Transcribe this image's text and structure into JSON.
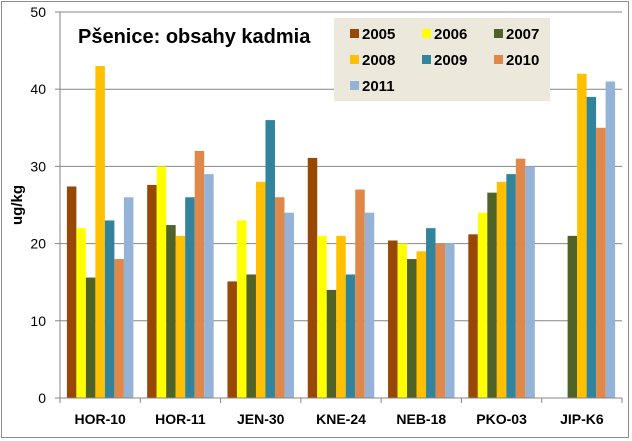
{
  "chart_data": {
    "type": "bar",
    "title": "Pšenice: obsahy kadmia",
    "xlabel": "",
    "ylabel": "ug/kg",
    "ylim": [
      0,
      50
    ],
    "yticks": [
      "0",
      "10",
      "20",
      "30",
      "40",
      "50"
    ],
    "grid": "horizontal",
    "legend_position": "top-right",
    "categories": [
      "HOR-10",
      "HOR-11",
      "JEN-30",
      "KNE-24",
      "NEB-18",
      "PKO-03",
      "JIP-K6"
    ],
    "series": [
      {
        "name": "2005",
        "color": "#974706",
        "values": [
          27.4,
          27.6,
          15.1,
          31.1,
          20.4,
          21.2,
          null
        ]
      },
      {
        "name": "2006",
        "color": "#ffff00",
        "values": [
          22,
          30,
          23,
          21,
          20,
          24,
          null
        ]
      },
      {
        "name": "2007",
        "color": "#4f6228",
        "values": [
          15.6,
          22.4,
          16,
          14,
          18,
          26.6,
          21
        ]
      },
      {
        "name": "2008",
        "color": "#ffc000",
        "values": [
          43,
          21,
          28,
          21,
          19,
          28,
          42
        ]
      },
      {
        "name": "2009",
        "color": "#31849b",
        "values": [
          23,
          26,
          36,
          16,
          22,
          29,
          39
        ]
      },
      {
        "name": "2010",
        "color": "#e0884a",
        "values": [
          18,
          32,
          26,
          27,
          20,
          31,
          35
        ]
      },
      {
        "name": "2011",
        "color": "#95b3d7",
        "values": [
          26,
          29,
          24,
          24,
          20,
          30,
          41
        ]
      }
    ]
  }
}
